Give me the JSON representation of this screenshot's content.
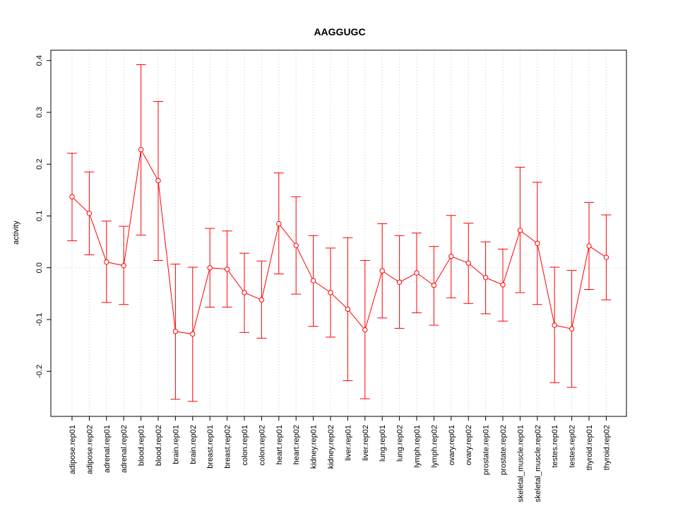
{
  "chart_data": {
    "type": "line",
    "title": "AAGGUGC",
    "xlabel": "",
    "ylabel": "activity",
    "ylim": [
      -0.287,
      0.42
    ],
    "yticks": [
      -0.2,
      -0.1,
      0.0,
      0.1,
      0.2,
      0.3,
      0.4
    ],
    "ytick_labels": [
      "-0.2",
      "-0.1",
      "0.0",
      "0.1",
      "0.2",
      "0.3",
      "0.4"
    ],
    "grid": true,
    "colors": {
      "series": "#ff0000",
      "grid": "#c8c8c8",
      "axis": "#000000"
    },
    "categories": [
      "adipose.rep01",
      "adipose.rep02",
      "adrenal.rep01",
      "adrenal.rep02",
      "blood.rep01",
      "blood.rep02",
      "brain.rep01",
      "brain.rep02",
      "breast.rep01",
      "breast.rep02",
      "colon.rep01",
      "colon.rep02",
      "heart.rep01",
      "heart.rep02",
      "kidney.rep01",
      "kidney.rep02",
      "liver.rep01",
      "liver.rep02",
      "lung.rep01",
      "lung.rep02",
      "lymph.rep01",
      "lymph.rep02",
      "ovary.rep01",
      "ovary.rep02",
      "prostate.rep01",
      "prostate.rep02",
      "skeletal_muscle.rep01",
      "skeletal_muscle.rep02",
      "testes.rep01",
      "testes.rep02",
      "thyroid.rep01",
      "thyroid.rep02"
    ],
    "values": [
      0.137,
      0.105,
      0.011,
      0.004,
      0.228,
      0.168,
      -0.123,
      -0.128,
      0.0,
      -0.003,
      -0.048,
      -0.062,
      0.085,
      0.043,
      -0.025,
      -0.048,
      -0.08,
      -0.12,
      -0.006,
      -0.028,
      -0.01,
      -0.034,
      0.022,
      0.009,
      -0.019,
      -0.033,
      0.072,
      0.047,
      -0.111,
      -0.118,
      0.042,
      0.02
    ],
    "upper": [
      0.221,
      0.185,
      0.09,
      0.08,
      0.392,
      0.321,
      0.007,
      0.001,
      0.076,
      0.071,
      0.028,
      0.013,
      0.183,
      0.137,
      0.062,
      0.038,
      0.058,
      0.014,
      0.085,
      0.062,
      0.067,
      0.041,
      0.101,
      0.086,
      0.05,
      0.036,
      0.194,
      0.165,
      0.001,
      -0.005,
      0.126,
      0.102
    ],
    "lower": [
      0.052,
      0.025,
      -0.067,
      -0.071,
      0.063,
      0.014,
      -0.254,
      -0.258,
      -0.076,
      -0.076,
      -0.125,
      -0.136,
      -0.012,
      -0.051,
      -0.113,
      -0.134,
      -0.218,
      -0.253,
      -0.097,
      -0.117,
      -0.087,
      -0.111,
      -0.058,
      -0.069,
      -0.089,
      -0.103,
      -0.048,
      -0.071,
      -0.222,
      -0.231,
      -0.042,
      -0.062
    ]
  }
}
